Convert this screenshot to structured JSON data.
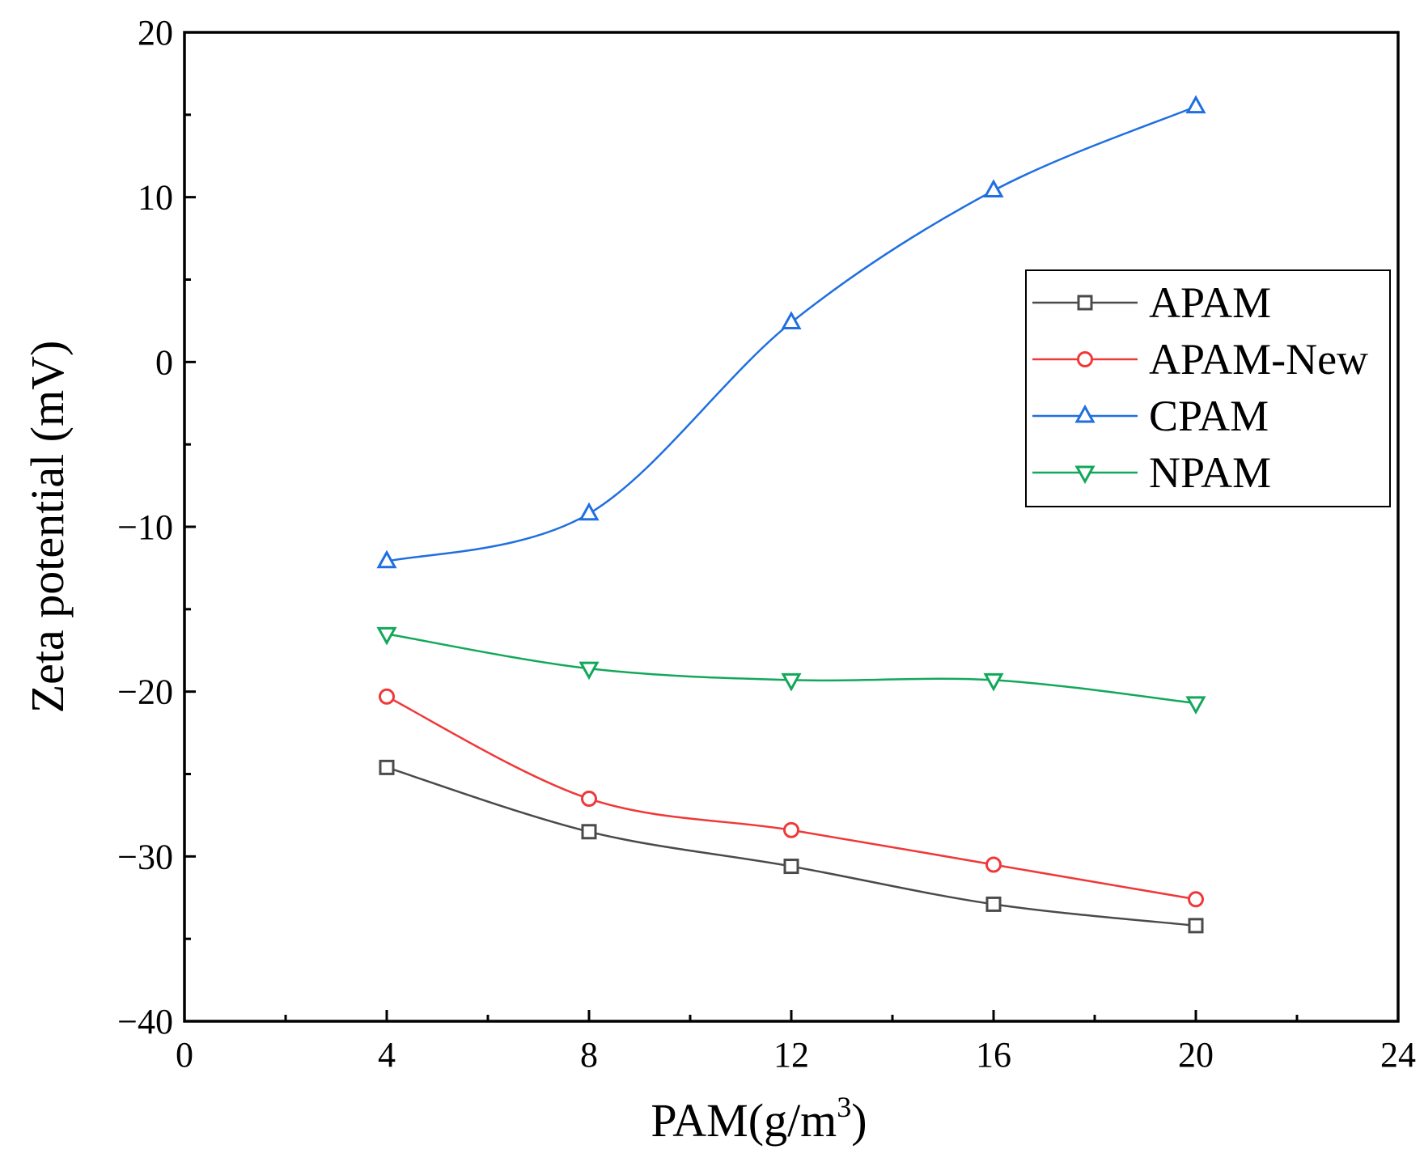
{
  "chart_data": {
    "type": "line",
    "title": "",
    "xlabel": "PAM(g/m",
    "xlabel_superscript": "3",
    "xlabel_suffix": ")",
    "ylabel": "Zeta potential (mV)",
    "xlim": [
      0,
      24
    ],
    "ylim": [
      -40,
      20
    ],
    "xticks": [
      0,
      4,
      8,
      12,
      16,
      20,
      24
    ],
    "xtick_labels": [
      "0",
      "4",
      "8",
      "12",
      "16",
      "20",
      "24"
    ],
    "yticks": [
      -40,
      -30,
      -20,
      -10,
      0,
      10,
      20
    ],
    "ytick_labels": [
      "−40",
      "−30",
      "−20",
      "−10",
      "0",
      "10",
      "20"
    ],
    "x_minor_step": 2,
    "y_minor_step": 5,
    "grid": false,
    "legend_position": "right",
    "x": [
      4,
      8,
      12,
      16,
      20
    ],
    "series": [
      {
        "name": "APAM",
        "color": "#4a4a4a",
        "marker": "square",
        "values": [
          -24.6,
          -28.5,
          -30.6,
          -32.9,
          -34.2
        ]
      },
      {
        "name": "APAM-New",
        "color": "#f03838",
        "marker": "circle",
        "values": [
          -20.3,
          -26.5,
          -28.4,
          -30.5,
          -32.6
        ]
      },
      {
        "name": "CPAM",
        "color": "#1f6fe0",
        "marker": "triangle-up",
        "values": [
          -12.1,
          -9.2,
          2.4,
          10.4,
          15.5
        ]
      },
      {
        "name": "NPAM",
        "color": "#12a85a",
        "marker": "triangle-down",
        "values": [
          -16.5,
          -18.6,
          -19.3,
          -19.3,
          -20.7
        ]
      }
    ]
  }
}
